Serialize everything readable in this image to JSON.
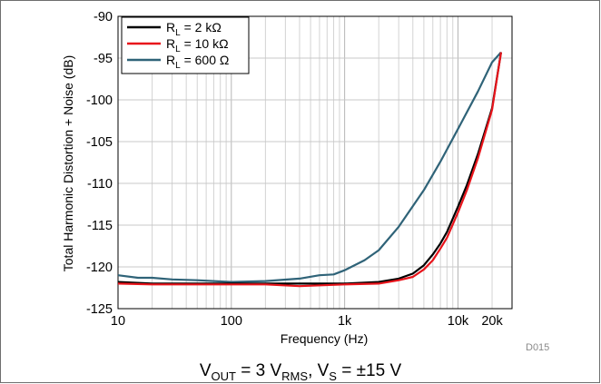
{
  "chart_data": {
    "type": "line",
    "xlabel": "Frequency (Hz)",
    "ylabel": "Total Harmonic Distortion + Noise (dB)",
    "x_scale": "log",
    "xlim": [
      10,
      30000
    ],
    "ylim": [
      -125,
      -90
    ],
    "x_ticks": [
      {
        "value": 10,
        "label": "10"
      },
      {
        "value": 100,
        "label": "100"
      },
      {
        "value": 1000,
        "label": "1k"
      },
      {
        "value": 10000,
        "label": "10k"
      },
      {
        "value": 20000,
        "label": "20k"
      }
    ],
    "y_ticks": [
      -90,
      -95,
      -100,
      -105,
      -110,
      -115,
      -120,
      -125
    ],
    "grid": true,
    "legend_position": "top-left",
    "series": [
      {
        "name": "R_L = 2 kΩ",
        "legend_main": "R",
        "legend_sub": "L",
        "legend_rest": " = 2 kΩ",
        "color": "#000000",
        "x": [
          10,
          20,
          50,
          100,
          200,
          500,
          1000,
          2000,
          3000,
          4000,
          5000,
          6000,
          7000,
          8000,
          10000,
          12000,
          15000,
          20000,
          24000
        ],
        "y": [
          -121.8,
          -122,
          -122,
          -122,
          -122,
          -122,
          -122,
          -121.8,
          -121.4,
          -120.8,
          -119.8,
          -118.5,
          -117.2,
          -115.8,
          -112.8,
          -110.2,
          -106.5,
          -101,
          -94.3
        ]
      },
      {
        "name": "R_L = 10 kΩ",
        "legend_main": "R",
        "legend_sub": "L",
        "legend_rest": " = 10 kΩ",
        "color": "#e8141b",
        "x": [
          10,
          20,
          50,
          100,
          200,
          400,
          1000,
          2000,
          3000,
          4000,
          5000,
          6000,
          7000,
          8000,
          10000,
          12000,
          15000,
          20000,
          24000
        ],
        "y": [
          -122,
          -122.1,
          -122.1,
          -122.1,
          -122.1,
          -122.3,
          -122.1,
          -122,
          -121.6,
          -121.2,
          -120.3,
          -119.2,
          -117.8,
          -116.5,
          -113.5,
          -110.8,
          -107,
          -101.2,
          -94.3
        ]
      },
      {
        "name": "R_L = 600 Ω",
        "legend_main": "R",
        "legend_sub": "L",
        "legend_rest": " = 600 Ω",
        "color": "#2f6378",
        "x": [
          10,
          15,
          20,
          30,
          50,
          100,
          200,
          400,
          600,
          800,
          1000,
          1500,
          2000,
          3000,
          5000,
          7000,
          10000,
          15000,
          20000,
          24000
        ],
        "y": [
          -121,
          -121.3,
          -121.3,
          -121.5,
          -121.6,
          -121.8,
          -121.7,
          -121.4,
          -121,
          -120.9,
          -120.4,
          -119.2,
          -118,
          -115.2,
          -110.8,
          -107.4,
          -103.5,
          -99,
          -95.5,
          -94.3
        ]
      }
    ]
  },
  "figure_code": "D015",
  "caption": {
    "v_main": "V",
    "v_sub": "OUT",
    "v_mid": " = 3 V",
    "rms_sub": "RMS",
    "sep": ", V",
    "s_sub": "S",
    "tail": " = ±15 V"
  }
}
